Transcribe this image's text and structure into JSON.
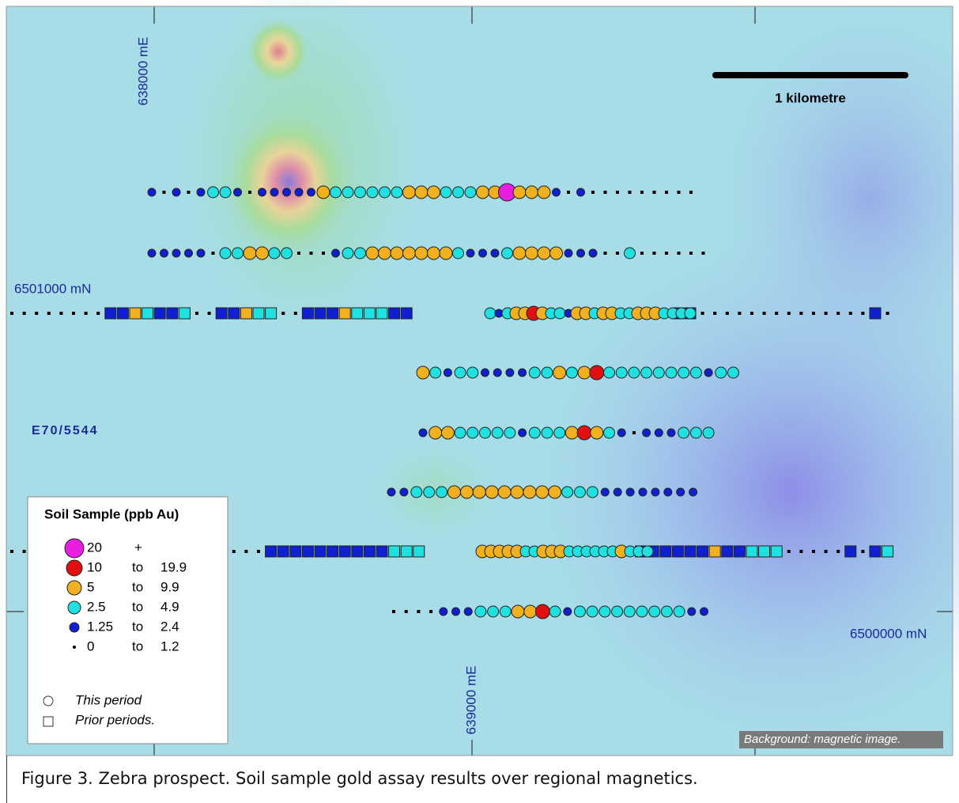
{
  "map": {
    "easting_labels": [
      "638000 mE",
      "639000 mE"
    ],
    "northing_labels": [
      "6501000 mN",
      "6500000 mN"
    ],
    "tenement": "E70/5544",
    "scale_bar": "1 kilometre",
    "background_note": "Background: magnetic image."
  },
  "legend": {
    "title": "Soil Sample (ppb Au)",
    "classes": [
      {
        "min": "20",
        "max": "+"
      },
      {
        "min": "10",
        "sep": "to",
        "max": "19.9"
      },
      {
        "min": "5",
        "sep": "to",
        "max": "9.9"
      },
      {
        "min": "2.5",
        "sep": "to",
        "max": "4.9"
      },
      {
        "min": "1.25",
        "sep": "to",
        "max": "2.4"
      },
      {
        "min": "0",
        "sep": "to",
        "max": "1.2"
      }
    ],
    "symbols": [
      "This period",
      "Prior periods."
    ]
  },
  "caption": "Figure 3. Zebra prospect. Soil sample gold assay results over regional magnetics."
}
